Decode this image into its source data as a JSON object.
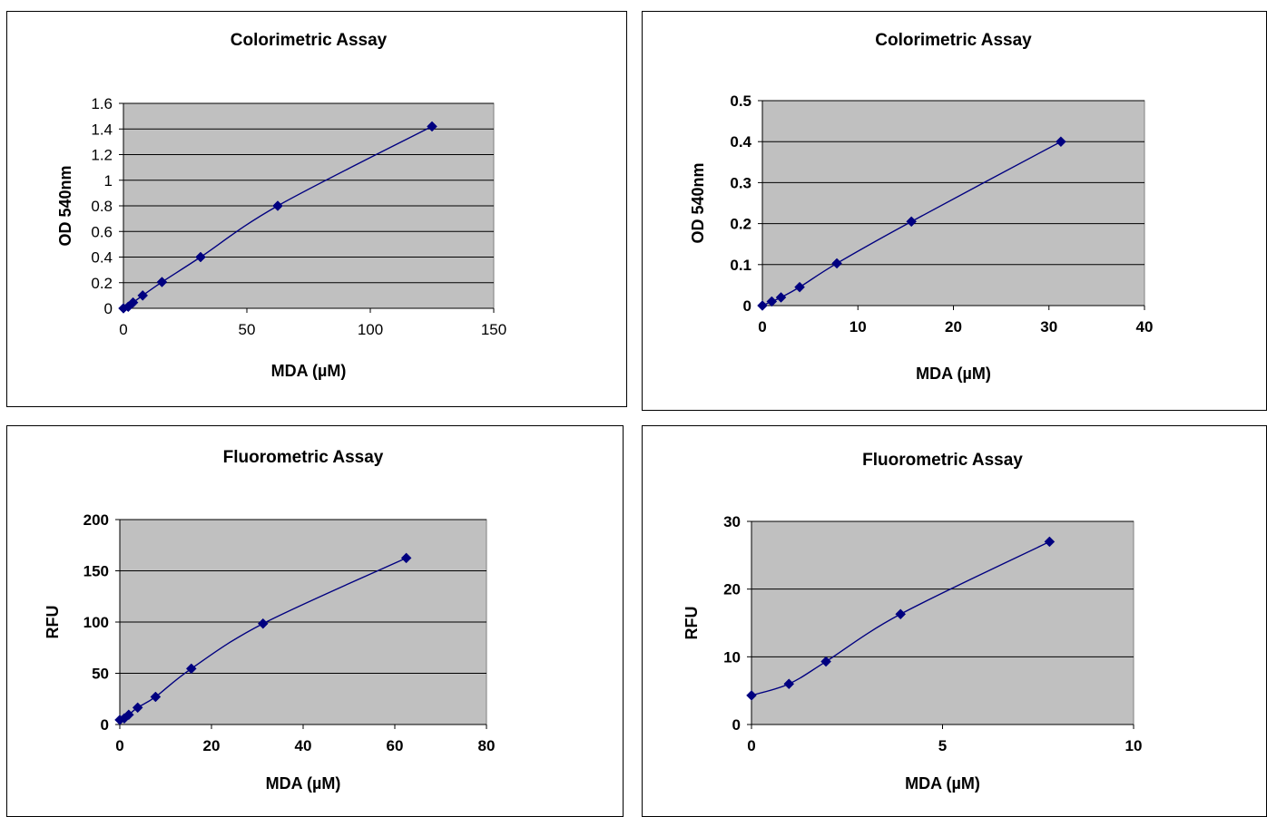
{
  "chart_data": [
    {
      "type": "scatter",
      "title": "Colorimetric Assay",
      "xlabel": "MDA (µM)",
      "ylabel": "OD 540nm",
      "xlim": [
        0,
        150
      ],
      "ylim": [
        0,
        1.6
      ],
      "xticks": [
        "0",
        "50",
        "100",
        "150"
      ],
      "yticks": [
        "0",
        "0.2",
        "0.4",
        "0.6",
        "0.8",
        "1",
        "1.2",
        "1.4",
        "1.6"
      ],
      "grid": true,
      "plot_background": "#c0c0c0",
      "series_color": "#000080",
      "series": [
        {
          "values": [
            [
              0,
              0.0
            ],
            [
              1.95,
              0.012
            ],
            [
              3.9,
              0.045
            ],
            [
              7.8,
              0.1
            ],
            [
              15.6,
              0.205
            ],
            [
              31.25,
              0.4
            ],
            [
              62.5,
              0.8
            ],
            [
              125,
              1.42
            ]
          ]
        }
      ]
    },
    {
      "type": "scatter",
      "title": "Colorimetric Assay",
      "xlabel": "MDA (µM)",
      "ylabel": "OD 540nm",
      "xlim": [
        0,
        40
      ],
      "ylim": [
        0,
        0.5
      ],
      "xticks": [
        "0",
        "10",
        "20",
        "30",
        "40"
      ],
      "yticks": [
        "0",
        "0.1",
        "0.2",
        "0.3",
        "0.4",
        "0.5"
      ],
      "grid": true,
      "plot_background": "#c0c0c0",
      "series_color": "#000080",
      "series": [
        {
          "values": [
            [
              0,
              0.0
            ],
            [
              0.98,
              0.01
            ],
            [
              1.95,
              0.02
            ],
            [
              3.9,
              0.045
            ],
            [
              7.8,
              0.103
            ],
            [
              15.6,
              0.205
            ],
            [
              31.25,
              0.4
            ]
          ]
        }
      ]
    },
    {
      "type": "scatter",
      "title": "Fluorometric Assay",
      "xlabel": "MDA (µM)",
      "ylabel": "RFU",
      "xlim": [
        0,
        80
      ],
      "ylim": [
        0,
        200
      ],
      "xticks": [
        "0",
        "20",
        "40",
        "60",
        "80"
      ],
      "yticks": [
        "0",
        "50",
        "100",
        "150",
        "200"
      ],
      "grid": true,
      "plot_background": "#c0c0c0",
      "series_color": "#000080",
      "series": [
        {
          "values": [
            [
              0,
              4.5
            ],
            [
              0.98,
              6
            ],
            [
              1.95,
              9.5
            ],
            [
              3.9,
              16.5
            ],
            [
              7.8,
              27
            ],
            [
              15.6,
              54.5
            ],
            [
              31.25,
              98.5
            ],
            [
              62.5,
              162.5
            ]
          ]
        }
      ]
    },
    {
      "type": "scatter",
      "title": "Fluorometric Assay",
      "xlabel": "MDA (µM)",
      "ylabel": "RFU",
      "xlim": [
        0,
        10
      ],
      "ylim": [
        0,
        30
      ],
      "xticks": [
        "0",
        "5",
        "10"
      ],
      "yticks": [
        "0",
        "10",
        "20",
        "30"
      ],
      "grid": true,
      "plot_background": "#c0c0c0",
      "series_color": "#000080",
      "series": [
        {
          "values": [
            [
              0,
              4.3
            ],
            [
              0.98,
              6
            ],
            [
              1.95,
              9.3
            ],
            [
              3.9,
              16.3
            ],
            [
              7.8,
              27
            ]
          ]
        }
      ]
    }
  ]
}
